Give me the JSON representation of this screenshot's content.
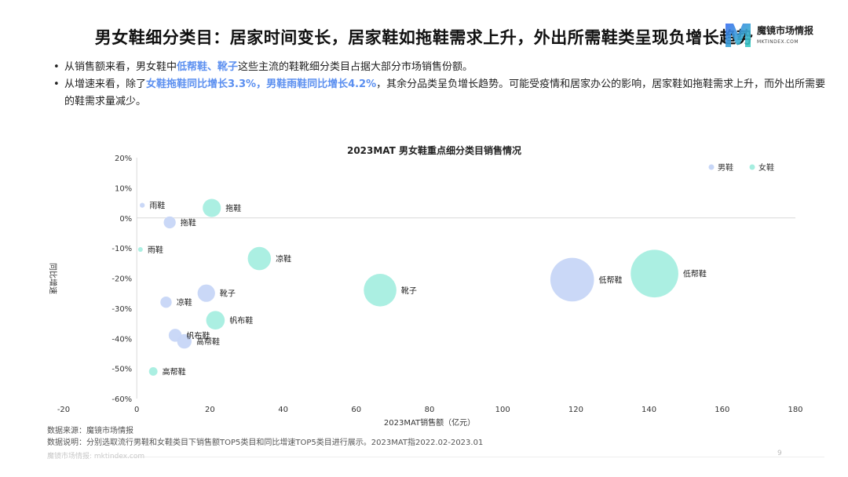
{
  "header": {
    "title": "男女鞋细分类目：居家时间变长，居家鞋如拖鞋需求上升，外出所需鞋类呈现负增长趋势",
    "brand_name": "魔镜市场情报",
    "brand_sub": "MKTINDEX.COM"
  },
  "bullets": [
    {
      "parts": [
        {
          "text": "从销售额来看，男女鞋中",
          "hl": false
        },
        {
          "text": "低帮鞋、靴子",
          "hl": true
        },
        {
          "text": "这些主流的鞋靴细分类目占据大部分市场销售份额。",
          "hl": false
        }
      ]
    },
    {
      "parts": [
        {
          "text": "从增速来看，除了",
          "hl": false
        },
        {
          "text": "女鞋拖鞋同比增长3.3%，男鞋雨鞋同比增长4.2%",
          "hl": true
        },
        {
          "text": "，其余分品类呈负增长趋势。可能受疫情和居家办公的影响，居家鞋如拖鞋需求上升，而外出所需要的鞋需求量减少。",
          "hl": false
        }
      ]
    }
  ],
  "chart_data": {
    "type": "scatter",
    "title": "2023MAT 男女鞋重点细分类目销售情况",
    "xlabel": "2023MAT销售额（亿元）",
    "ylabel": "同比增速",
    "xlim": [
      -20,
      180
    ],
    "ylim": [
      -60,
      20
    ],
    "xticks": [
      -20,
      0,
      20,
      40,
      60,
      80,
      100,
      120,
      140,
      160,
      180
    ],
    "yticks": [
      20,
      10,
      0,
      -10,
      -20,
      -30,
      -40,
      -50,
      -60
    ],
    "ytick_labels": [
      "20%",
      "10%",
      "0%",
      "-10%",
      "-20%",
      "-30%",
      "-40%",
      "-50%",
      "-60%"
    ],
    "legend_position": "top-right",
    "colors": {
      "男鞋": "#c7d6f7",
      "女鞋": "#a6eee0"
    },
    "series": [
      {
        "name": "男鞋",
        "points": [
          {
            "label": "雨鞋",
            "x": 1.5,
            "y": 4.2
          },
          {
            "label": "拖鞋",
            "x": 9,
            "y": -1.5
          },
          {
            "label": "凉鞋",
            "x": 8,
            "y": -28
          },
          {
            "label": "靴子",
            "x": 19,
            "y": -25
          },
          {
            "label": "帆布鞋",
            "x": 10.5,
            "y": -39
          },
          {
            "label": "高帮鞋",
            "x": 13,
            "y": -41
          },
          {
            "label": "低帮鞋",
            "x": 119,
            "y": -20.5
          }
        ]
      },
      {
        "name": "女鞋",
        "points": [
          {
            "label": "拖鞋",
            "x": 20.5,
            "y": 3.3
          },
          {
            "label": "雨鞋",
            "x": 1,
            "y": -10.5
          },
          {
            "label": "凉鞋",
            "x": 33.5,
            "y": -13.5
          },
          {
            "label": "靴子",
            "x": 66.5,
            "y": -24
          },
          {
            "label": "帆布鞋",
            "x": 21.5,
            "y": -34
          },
          {
            "label": "高帮鞋",
            "x": 4.5,
            "y": -51
          },
          {
            "label": "低帮鞋",
            "x": 141.5,
            "y": -18.5
          }
        ]
      }
    ]
  },
  "notes": {
    "source": "数据来源：魔镜市场情报",
    "desc": "数据说明：分别选取流行男鞋和女鞋类目下销售额TOP5类目和同比增速TOP5类目进行展示。2023MAT指2022.02-2023.01"
  },
  "footer": {
    "left": "魔镜市场情报: mktindex.com",
    "page": "9"
  }
}
